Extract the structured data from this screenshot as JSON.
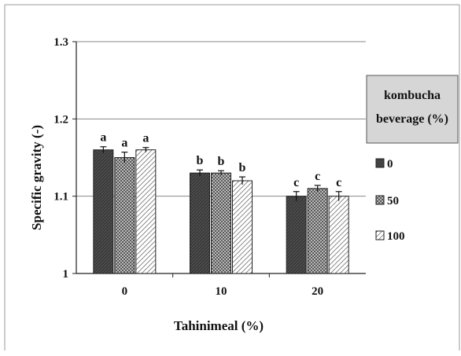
{
  "chart_data": {
    "type": "bar",
    "title": "",
    "xlabel": "Tahinimeal (%)",
    "ylabel": "Specific gravity (-)",
    "ylim": [
      1,
      1.3
    ],
    "yticks": [
      "1",
      "1.1",
      "1.2",
      "1.3"
    ],
    "grid": true,
    "categories": [
      "0",
      "10",
      "20"
    ],
    "legend": {
      "title_line1": "kombucha",
      "title_line2": "beverage  (%)",
      "position": "right"
    },
    "series": [
      {
        "name": "0",
        "pattern": "solid-dark",
        "values": [
          1.16,
          1.13,
          1.1
        ],
        "errors": [
          0.004,
          0.004,
          0.006
        ],
        "labels": [
          "a",
          "b",
          "c"
        ]
      },
      {
        "name": "50",
        "pattern": "crosshatch",
        "values": [
          1.15,
          1.13,
          1.11
        ],
        "errors": [
          0.007,
          0.003,
          0.004
        ],
        "labels": [
          "a",
          "b",
          "c"
        ]
      },
      {
        "name": "100",
        "pattern": "diagonal-light",
        "values": [
          1.16,
          1.12,
          1.1
        ],
        "errors": [
          0.003,
          0.005,
          0.006
        ],
        "labels": [
          "a",
          "b",
          "c"
        ]
      }
    ]
  }
}
